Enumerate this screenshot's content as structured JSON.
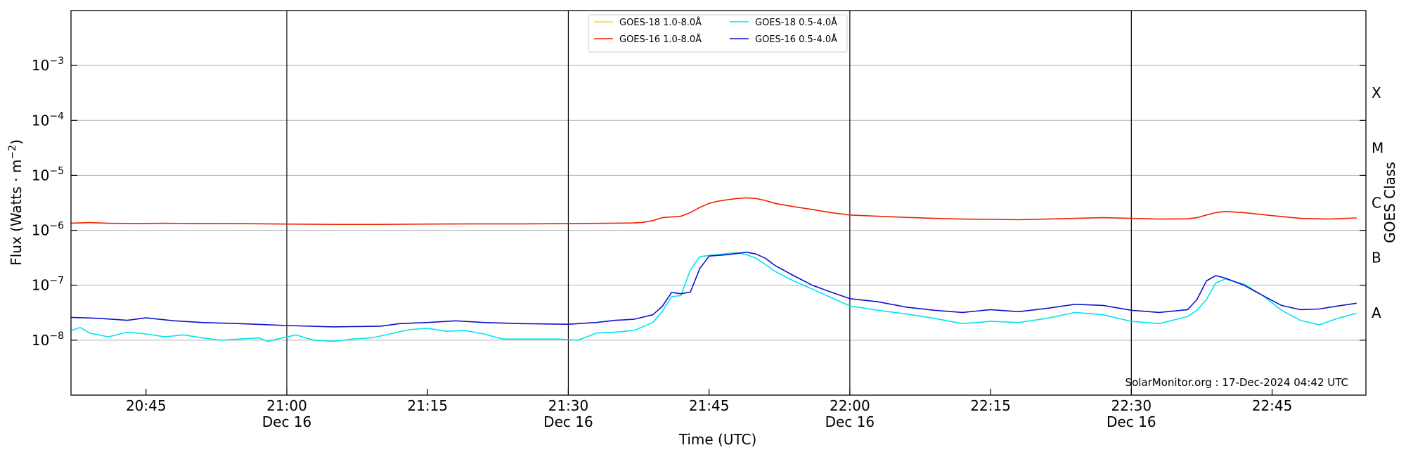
{
  "chart_data": {
    "type": "line",
    "title": "",
    "xlabel": "Time (UTC)",
    "ylabel_prefix": "Flux (Watts · m",
    "ylabel_sup": "−2",
    "ylabel_suffix": ")",
    "right_label": "GOES Class",
    "y_scale": "log",
    "ylim": [
      1e-09,
      0.01
    ],
    "xlim": [
      "20:37",
      "22:55"
    ],
    "y_ticks": [
      {
        "exp": "−8",
        "value": 1e-08
      },
      {
        "exp": "−7",
        "value": 1e-07
      },
      {
        "exp": "−6",
        "value": 1e-06
      },
      {
        "exp": "−5",
        "value": 1e-05
      },
      {
        "exp": "−4",
        "value": 0.0001
      },
      {
        "exp": "−3",
        "value": 0.001
      }
    ],
    "y_tick_base": "10",
    "x_ticks": [
      {
        "time": "20:45",
        "label": "20:45",
        "date": ""
      },
      {
        "time": "21:00",
        "label": "21:00",
        "date": "Dec 16"
      },
      {
        "time": "21:15",
        "label": "21:15",
        "date": ""
      },
      {
        "time": "21:30",
        "label": "21:30",
        "date": "Dec 16"
      },
      {
        "time": "21:45",
        "label": "21:45",
        "date": ""
      },
      {
        "time": "22:00",
        "label": "22:00",
        "date": "Dec 16"
      },
      {
        "time": "22:15",
        "label": "22:15",
        "date": ""
      },
      {
        "time": "22:30",
        "label": "22:30",
        "date": "Dec 16"
      },
      {
        "time": "22:45",
        "label": "22:45",
        "date": ""
      }
    ],
    "vertical_lines": [
      "21:00",
      "21:30",
      "22:00",
      "22:30"
    ],
    "classes": [
      {
        "label": "A",
        "value": 3.16e-08
      },
      {
        "label": "B",
        "value": 3.16e-07
      },
      {
        "label": "C",
        "value": 3.16e-06
      },
      {
        "label": "M",
        "value": 3.16e-05
      },
      {
        "label": "X",
        "value": 0.000316
      }
    ],
    "grid": "horizontal",
    "legend_position": "top-center",
    "credit": "SolarMonitor.org : 17-Dec-2024 04:42 UTC",
    "series": [
      {
        "name": "GOES-18 1.0-8.0Å",
        "color": "#ffd700",
        "t": [],
        "values": []
      },
      {
        "name": "GOES-16 1.0-8.0Å",
        "color": "#ee2200",
        "t": [
          "20:37",
          "20:39",
          "20:41",
          "20:44",
          "20:47",
          "20:50",
          "20:55",
          "21:00",
          "21:05",
          "21:10",
          "21:15",
          "21:20",
          "21:25",
          "21:30",
          "21:34",
          "21:37",
          "21:38",
          "21:39",
          "21:40",
          "21:42",
          "21:43",
          "21:44",
          "21:45",
          "21:46",
          "21:47",
          "21:48",
          "21:49",
          "21:50",
          "21:51",
          "21:52",
          "21:54",
          "21:56",
          "21:58",
          "22:00",
          "22:03",
          "22:06",
          "22:09",
          "22:12",
          "22:15",
          "22:18",
          "22:21",
          "22:24",
          "22:27",
          "22:30",
          "22:33",
          "22:36",
          "22:37",
          "22:38",
          "22:39",
          "22:40",
          "22:42",
          "22:45",
          "22:48",
          "22:51",
          "22:54"
        ],
        "values": [
          1.35e-06,
          1.38e-06,
          1.34e-06,
          1.33e-06,
          1.34e-06,
          1.33e-06,
          1.32e-06,
          1.3e-06,
          1.28e-06,
          1.28e-06,
          1.3e-06,
          1.31e-06,
          1.31e-06,
          1.32e-06,
          1.34e-06,
          1.36e-06,
          1.4e-06,
          1.5e-06,
          1.7e-06,
          1.8e-06,
          2.1e-06,
          2.6e-06,
          3.1e-06,
          3.4e-06,
          3.6e-06,
          3.8e-06,
          3.9e-06,
          3.8e-06,
          3.5e-06,
          3.1e-06,
          2.7e-06,
          2.4e-06,
          2.1e-06,
          1.9e-06,
          1.8e-06,
          1.72e-06,
          1.65e-06,
          1.6e-06,
          1.58e-06,
          1.56e-06,
          1.6e-06,
          1.65e-06,
          1.7e-06,
          1.65e-06,
          1.6e-06,
          1.62e-06,
          1.7e-06,
          1.9e-06,
          2.1e-06,
          2.2e-06,
          2.1e-06,
          1.85e-06,
          1.65e-06,
          1.6e-06,
          1.68e-06
        ]
      },
      {
        "name": "GOES-18 0.5-4.0Å",
        "color": "#00e5ee",
        "t": [
          "20:37",
          "20:38",
          "20:39",
          "20:41",
          "20:43",
          "20:45",
          "20:47",
          "20:49",
          "20:51",
          "20:53",
          "20:55",
          "20:57",
          "20:58",
          "20:59",
          "21:01",
          "21:02",
          "21:03",
          "21:05",
          "21:07",
          "21:09",
          "21:11",
          "21:13",
          "21:15",
          "21:17",
          "21:19",
          "21:21",
          "21:23",
          "21:25",
          "21:27",
          "21:29",
          "21:31",
          "21:33",
          "21:35",
          "21:37",
          "21:39",
          "21:40",
          "21:41",
          "21:42",
          "21:43",
          "21:44",
          "21:45",
          "21:46",
          "21:47",
          "21:48",
          "21:49",
          "21:50",
          "21:51",
          "21:52",
          "21:54",
          "21:56",
          "21:58",
          "22:00",
          "22:03",
          "22:06",
          "22:09",
          "22:12",
          "22:15",
          "22:18",
          "22:21",
          "22:24",
          "22:27",
          "22:30",
          "22:33",
          "22:36",
          "22:37",
          "22:38",
          "22:39",
          "22:40",
          "22:42",
          "22:44",
          "22:46",
          "22:48",
          "22:50",
          "22:52",
          "22:54"
        ],
        "values": [
          1.5e-08,
          1.7e-08,
          1.35e-08,
          1.15e-08,
          1.4e-08,
          1.3e-08,
          1.15e-08,
          1.25e-08,
          1.1e-08,
          1e-08,
          1.05e-08,
          1.1e-08,
          9.5e-09,
          1.05e-08,
          1.25e-08,
          1.1e-08,
          1e-08,
          9.5e-09,
          1.05e-08,
          1.1e-08,
          1.3e-08,
          1.55e-08,
          1.65e-08,
          1.45e-08,
          1.5e-08,
          1.3e-08,
          1.05e-08,
          1.05e-08,
          1.05e-08,
          1.05e-08,
          1e-08,
          1.35e-08,
          1.4e-08,
          1.5e-08,
          2.1e-08,
          3.3e-08,
          6.2e-08,
          6.5e-08,
          1.9e-07,
          3.3e-07,
          3.5e-07,
          3.6e-07,
          3.8e-07,
          3.9e-07,
          3.6e-07,
          3.1e-07,
          2.4e-07,
          1.8e-07,
          1.2e-07,
          8.5e-08,
          6e-08,
          4.2e-08,
          3.5e-08,
          3e-08,
          2.5e-08,
          2e-08,
          2.2e-08,
          2.1e-08,
          2.5e-08,
          3.2e-08,
          2.9e-08,
          2.2e-08,
          2e-08,
          2.7e-08,
          3.5e-08,
          5.5e-08,
          1.1e-07,
          1.3e-07,
          1.05e-07,
          6.5e-08,
          3.5e-08,
          2.3e-08,
          1.9e-08,
          2.5e-08,
          3.1e-08
        ]
      },
      {
        "name": "GOES-16 0.5-4.0Å",
        "color": "#1111cc",
        "t": [
          "20:37",
          "20:40",
          "20:43",
          "20:45",
          "20:48",
          "20:51",
          "20:55",
          "21:00",
          "21:05",
          "21:10",
          "21:12",
          "21:15",
          "21:18",
          "21:21",
          "21:25",
          "21:30",
          "21:33",
          "21:35",
          "21:37",
          "21:39",
          "21:40",
          "21:41",
          "21:42",
          "21:43",
          "21:44",
          "21:45",
          "21:46",
          "21:47",
          "21:48",
          "21:49",
          "21:50",
          "21:51",
          "21:52",
          "21:54",
          "21:56",
          "21:58",
          "22:00",
          "22:03",
          "22:06",
          "22:09",
          "22:12",
          "22:15",
          "22:18",
          "22:21",
          "22:24",
          "22:27",
          "22:30",
          "22:33",
          "22:36",
          "22:37",
          "22:38",
          "22:39",
          "22:40",
          "22:42",
          "22:44",
          "22:46",
          "22:48",
          "22:50",
          "22:52",
          "22:54"
        ],
        "values": [
          2.6e-08,
          2.5e-08,
          2.3e-08,
          2.55e-08,
          2.25e-08,
          2.1e-08,
          2e-08,
          1.85e-08,
          1.75e-08,
          1.8e-08,
          2e-08,
          2.1e-08,
          2.25e-08,
          2.1e-08,
          2e-08,
          1.95e-08,
          2.1e-08,
          2.3e-08,
          2.4e-08,
          2.9e-08,
          4.1e-08,
          7.4e-08,
          7e-08,
          7.5e-08,
          2e-07,
          3.4e-07,
          3.5e-07,
          3.6e-07,
          3.8e-07,
          4e-07,
          3.7e-07,
          3.1e-07,
          2.3e-07,
          1.5e-07,
          1e-07,
          7.5e-08,
          5.7e-08,
          5e-08,
          4e-08,
          3.5e-08,
          3.2e-08,
          3.6e-08,
          3.3e-08,
          3.8e-08,
          4.5e-08,
          4.3e-08,
          3.5e-08,
          3.2e-08,
          3.6e-08,
          5.5e-08,
          1.2e-07,
          1.5e-07,
          1.35e-07,
          1e-07,
          6.5e-08,
          4.3e-08,
          3.6e-08,
          3.7e-08,
          4.2e-08,
          4.7e-08
        ]
      }
    ]
  }
}
